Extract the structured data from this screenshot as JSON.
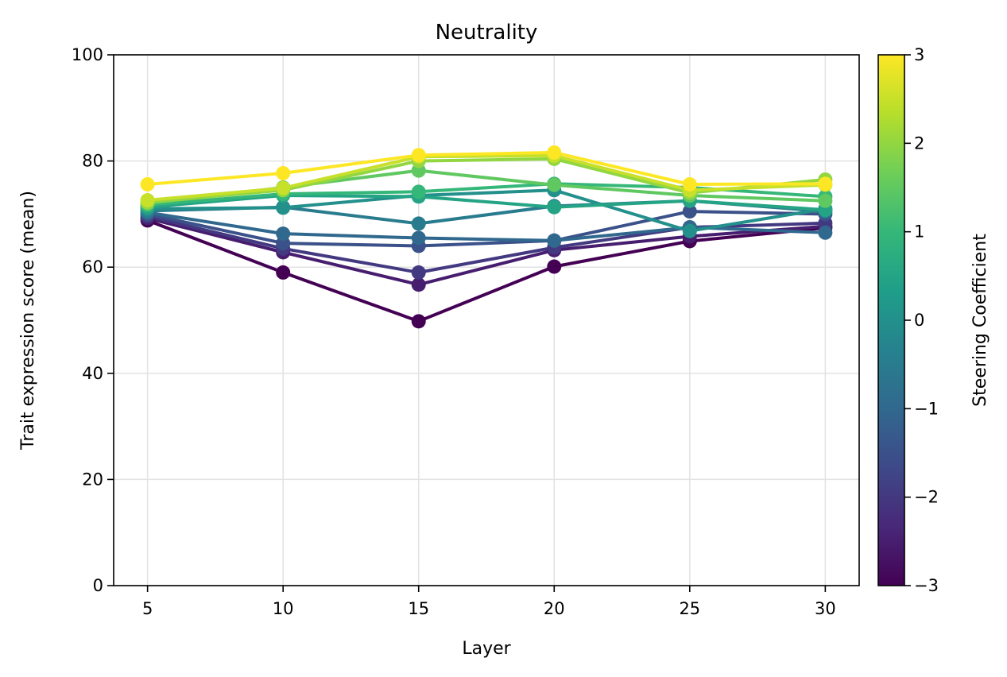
{
  "chart_data": {
    "type": "line",
    "title": "Neutrality",
    "xlabel": "Layer",
    "ylabel": "Trait expression score (mean)",
    "x": [
      5,
      10,
      15,
      20,
      25,
      30
    ],
    "x_ticks": [
      "5",
      "10",
      "15",
      "20",
      "25",
      "30"
    ],
    "ylim": [
      0,
      100
    ],
    "y_ticks": [
      "0",
      "20",
      "40",
      "60",
      "80",
      "100"
    ],
    "grid": true,
    "colorbar": {
      "label": "Steering Coefficient",
      "range": [
        -3,
        3
      ],
      "ticks": [
        "−3",
        "−2",
        "−1",
        "0",
        "1",
        "2",
        "3"
      ],
      "colormap": "viridis",
      "colors": [
        "#440154",
        "#482878",
        "#3e4989",
        "#31688e",
        "#26828e",
        "#1f9e89",
        "#35b779",
        "#6ece58",
        "#b5de2b",
        "#fde725"
      ]
    },
    "series": [
      {
        "coef": -3.0,
        "values": [
          68.8,
          59.0,
          49.8,
          60.1,
          64.9,
          67.4
        ]
      },
      {
        "coef": -2.5,
        "values": [
          69.2,
          62.8,
          56.7,
          63.2,
          65.8,
          67.7
        ]
      },
      {
        "coef": -2.0,
        "values": [
          69.6,
          63.5,
          59.0,
          63.7,
          67.5,
          68.3
        ]
      },
      {
        "coef": -1.5,
        "values": [
          70.0,
          64.5,
          64.0,
          65.0,
          70.5,
          70.0
        ]
      },
      {
        "coef": -1.0,
        "values": [
          70.3,
          66.3,
          65.5,
          65.0,
          67.5,
          66.5
        ]
      },
      {
        "coef": -0.5,
        "values": [
          70.6,
          71.3,
          68.2,
          71.5,
          72.5,
          70.5
        ]
      },
      {
        "coef": 0.0,
        "values": [
          71.0,
          71.2,
          73.5,
          74.5,
          66.8,
          71.0
        ]
      },
      {
        "coef": 0.5,
        "values": [
          71.3,
          73.5,
          73.3,
          71.3,
          72.5,
          70.8
        ]
      },
      {
        "coef": 1.0,
        "values": [
          71.7,
          73.8,
          74.2,
          75.7,
          75.0,
          73.3
        ]
      },
      {
        "coef": 1.5,
        "values": [
          72.0,
          75.0,
          78.2,
          75.5,
          73.5,
          72.5
        ]
      },
      {
        "coef": 2.0,
        "values": [
          72.2,
          74.5,
          80.0,
          80.4,
          74.0,
          76.5
        ]
      },
      {
        "coef": 2.5,
        "values": [
          72.6,
          74.9,
          80.8,
          81.0,
          74.5,
          75.5
        ]
      },
      {
        "coef": 3.0,
        "values": [
          75.6,
          77.7,
          81.1,
          81.6,
          75.6,
          75.7
        ]
      }
    ]
  }
}
